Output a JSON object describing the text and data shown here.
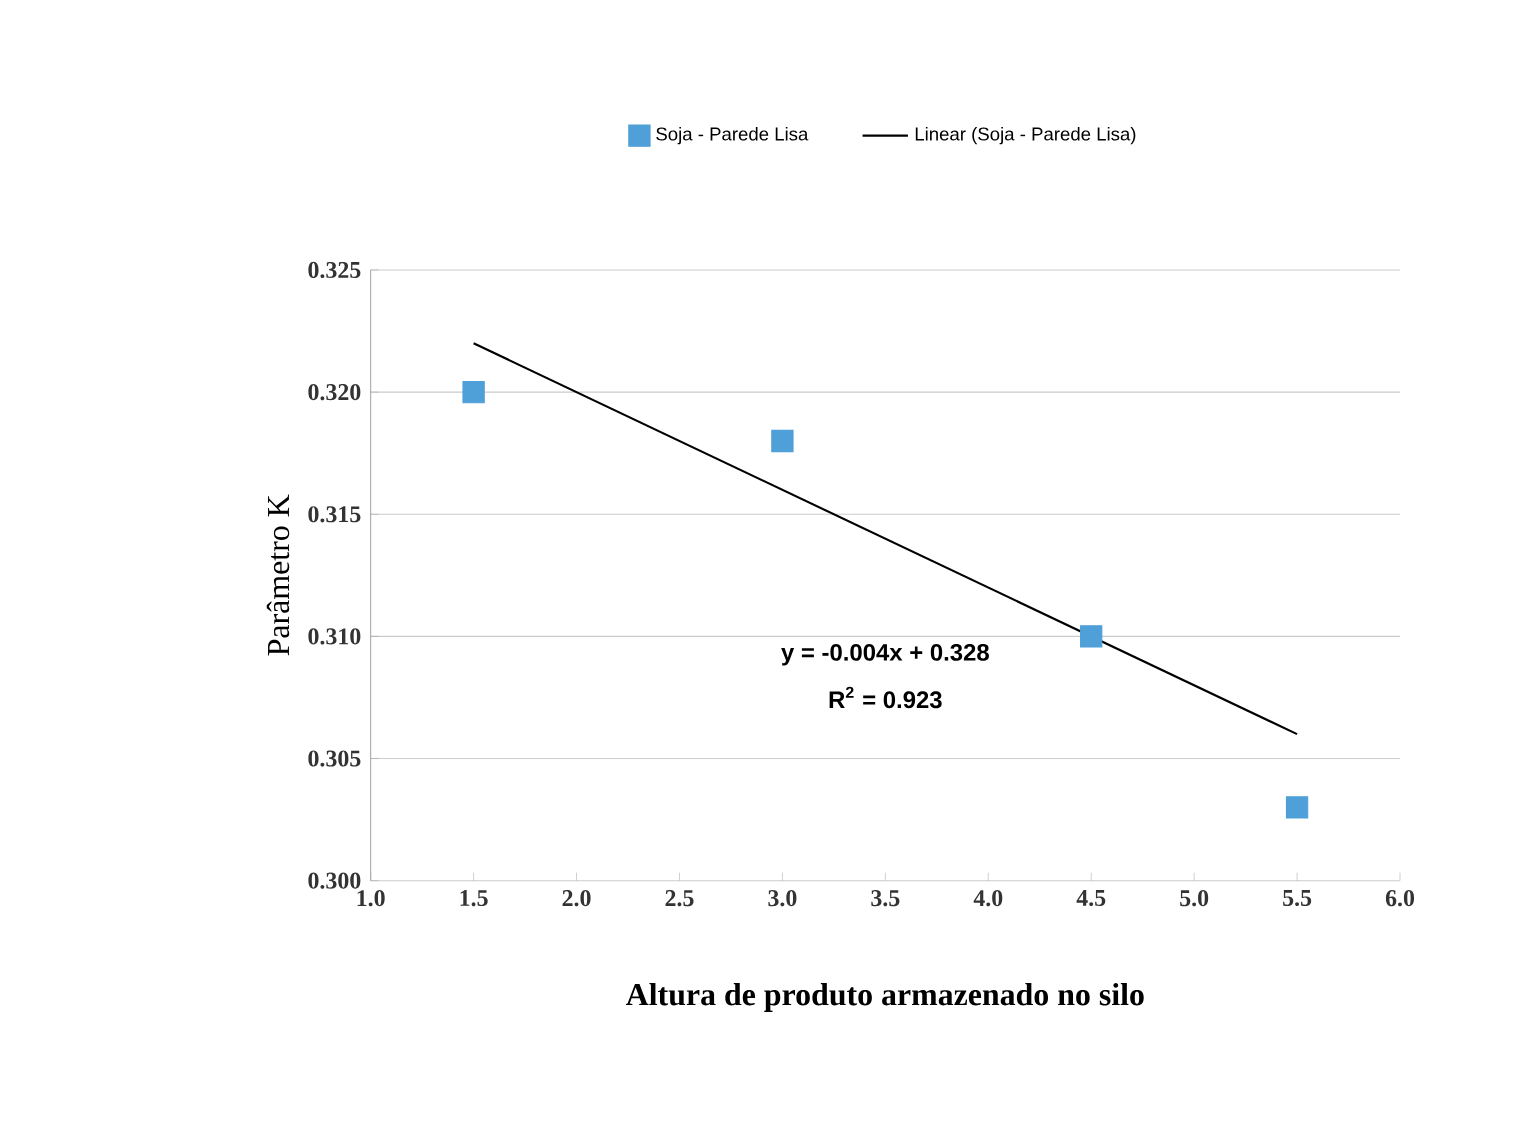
{
  "chart_data": {
    "type": "scatter",
    "xlabel": "Altura de produto armazenado no silo",
    "ylabel": "Parâmetro K",
    "series": [
      {
        "name": "Soja - Parede Lisa",
        "marker": "square",
        "color": "#4f9fd8",
        "x": [
          1.5,
          3.0,
          4.5,
          5.5
        ],
        "values": [
          0.32,
          0.318,
          0.31,
          0.303
        ]
      },
      {
        "name": "Linear (Soja - Parede Lisa)",
        "type": "line",
        "marker": "none",
        "color": "#000000",
        "x": [
          1.5,
          5.5
        ],
        "values": [
          0.322,
          0.306
        ]
      }
    ],
    "annotations": [
      "y = -0.004x + 0.328",
      "R$^{2}$ = 0.923"
    ],
    "xlim": [
      1.0,
      6.0
    ],
    "xticks": [
      {
        "value": 1.0,
        "label": "1.0"
      },
      {
        "value": 1.5,
        "label": "1.5"
      },
      {
        "value": 2.0,
        "label": "2.0"
      },
      {
        "value": 2.5,
        "label": "2.5"
      },
      {
        "value": 3.0,
        "label": "3.0"
      },
      {
        "value": 3.5,
        "label": "3.5"
      },
      {
        "value": 4.0,
        "label": "4.0"
      },
      {
        "value": 4.5,
        "label": "4.5"
      },
      {
        "value": 5.0,
        "label": "5.0"
      },
      {
        "value": 5.5,
        "label": "5.5"
      },
      {
        "value": 6.0,
        "label": "6.0"
      }
    ],
    "ylim": [
      0.3,
      0.325
    ],
    "yticks": [
      {
        "value": 0.3,
        "label": "0.300"
      },
      {
        "value": 0.305,
        "label": "0.305"
      },
      {
        "value": 0.31,
        "label": "0.310"
      },
      {
        "value": 0.315,
        "label": "0.315"
      },
      {
        "value": 0.32,
        "label": "0.320"
      },
      {
        "value": 0.325,
        "label": "0.325"
      }
    ],
    "grid": "y",
    "legend": "top"
  }
}
